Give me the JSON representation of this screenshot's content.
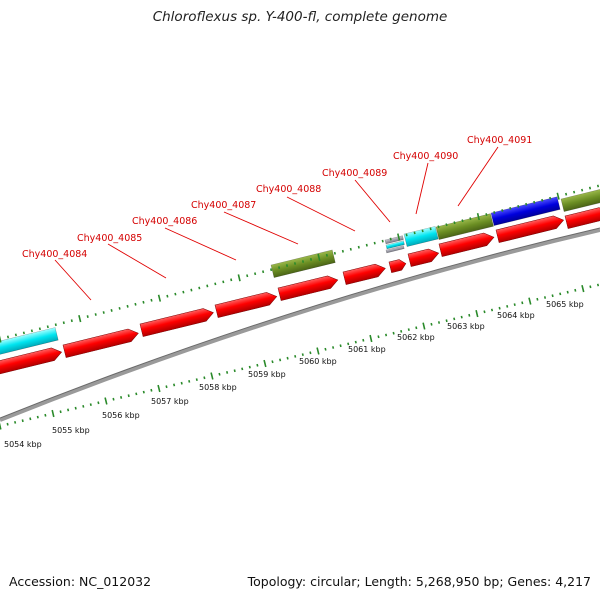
{
  "title": "Chloroflexus sp. Y-400-fl, complete genome",
  "footer": {
    "accession": "Accession: NC_012032",
    "topology": "Topology: circular; Length: 5,268,950 bp; Genes: 4,217"
  },
  "colors": {
    "forward_cds": "#ff0000",
    "reverse_cds": "#ff0000",
    "cyan_feature": "#00e5f0",
    "olive_feature": "#6b8e23",
    "blue_feature": "#0000dd",
    "tick": "#2a8a2a",
    "backbone": "#888888",
    "label": "#d40000"
  },
  "gene_labels": [
    "Chy400_4084",
    "Chy400_4085",
    "Chy400_4086",
    "Chy400_4087",
    "Chy400_4088",
    "Chy400_4089",
    "Chy400_4090",
    "Chy400_4091"
  ],
  "kbp_labels": [
    "5054 kbp",
    "5055 kbp",
    "5056 kbp",
    "5057 kbp",
    "5058 kbp",
    "5059 kbp",
    "5060 kbp",
    "5061 kbp",
    "5062 kbp",
    "5063 kbp",
    "5064 kbp",
    "5065 kbp"
  ]
}
